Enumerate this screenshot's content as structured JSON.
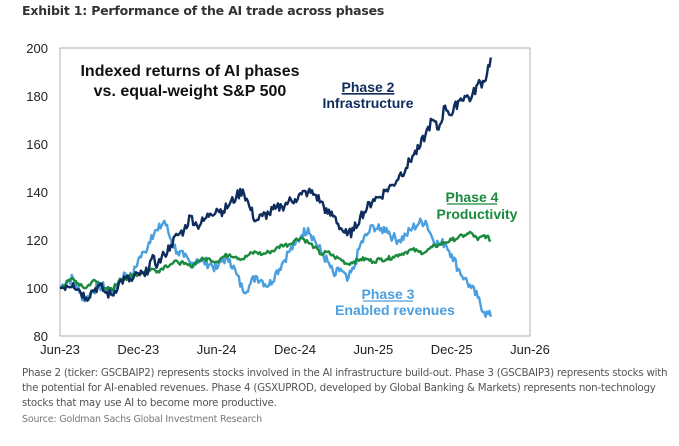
{
  "exhibit_title": "Exhibit 1: Performance of the AI trade across phases",
  "footnote": "Phase 2 (ticker: GSCBAIP2) represents stocks involved in the AI infrastructure build-out. Phase 3 (GSCBAIP3) represents stocks with the potential for AI-enabled revenues. Phase 4 (GSXUPROD, developed by Global Banking & Markets) represents non-technology stocks that may use AI to become more productive.",
  "source": "Source: Goldman Sachs Global Investment Research",
  "chart_data": {
    "type": "line",
    "title": "Indexed returns of AI phases vs. equal-weight S&P 500",
    "title_lines": [
      "Indexed returns of AI phases",
      "vs. equal-weight S&P 500"
    ],
    "xlabel": "",
    "ylabel": "",
    "x_unit": "months since Jun-23",
    "xlim": [
      0,
      36
    ],
    "ylim": [
      80,
      200
    ],
    "x_ticks": [
      {
        "label": "Jun-23",
        "value": 0
      },
      {
        "label": "Dec-23",
        "value": 6
      },
      {
        "label": "Jun-24",
        "value": 12
      },
      {
        "label": "Dec-24",
        "value": 18
      },
      {
        "label": "Jun-25",
        "value": 24
      },
      {
        "label": "Dec-25",
        "value": 30
      },
      {
        "label": "Jun-26",
        "value": 36
      }
    ],
    "y_ticks": [
      80,
      100,
      120,
      140,
      160,
      180,
      200
    ],
    "grid": false,
    "legend": "inline annotations",
    "x": [
      0,
      0.5,
      1,
      1.5,
      2,
      2.5,
      3,
      3.5,
      4,
      4.5,
      5,
      5.5,
      6,
      6.5,
      7,
      7.5,
      8,
      8.5,
      9,
      9.5,
      10,
      10.5,
      11,
      11.5,
      12,
      12.5,
      13,
      13.5,
      14,
      14.5,
      15,
      15.5,
      16,
      16.5,
      17,
      17.5,
      18,
      18.5,
      19,
      19.5,
      20,
      20.5,
      21,
      21.5,
      22,
      22.5,
      23,
      23.5,
      24,
      24.5,
      25,
      25.5,
      26,
      26.5,
      27,
      27.5,
      28,
      28.5,
      29,
      29.5,
      30,
      30.5,
      31,
      31.5,
      32,
      32.5,
      33
    ],
    "series": [
      {
        "name": "Phase 2",
        "label_line1": "Phase 2",
        "label_line2": "Infrastructure",
        "color": "#0f2d5c",
        "values": [
          100,
          101,
          102,
          99,
          96,
          99,
          101,
          98,
          97,
          102,
          104,
          103,
          106,
          105,
          112,
          110,
          114,
          118,
          122,
          124,
          130,
          126,
          128,
          131,
          133,
          132,
          135,
          138,
          141,
          134,
          128,
          130,
          131,
          133,
          134,
          136,
          137,
          139,
          140,
          139,
          136,
          131,
          130,
          125,
          122,
          124,
          130,
          133,
          137,
          138,
          141,
          143,
          147,
          150,
          155,
          158,
          164,
          170,
          166,
          176,
          172,
          178,
          180,
          179,
          185,
          186,
          196
        ]
      },
      {
        "name": "Phase 3",
        "label_line1": "Phase 3",
        "label_line2": "Enabled revenues",
        "color": "#4a9fe0",
        "values": [
          100,
          103,
          104,
          98,
          95,
          99,
          101,
          100,
          98,
          102,
          106,
          104,
          112,
          115,
          122,
          124,
          128,
          120,
          115,
          113,
          110,
          112,
          111,
          110,
          108,
          112,
          112,
          106,
          99,
          101,
          105,
          103,
          101,
          106,
          110,
          115,
          118,
          122,
          125,
          120,
          115,
          111,
          105,
          108,
          103,
          108,
          118,
          122,
          126,
          124,
          125,
          121,
          120,
          122,
          125,
          127,
          128,
          121,
          118,
          119,
          114,
          108,
          104,
          100,
          96,
          90,
          88
        ]
      },
      {
        "name": "Phase 4",
        "label_line1": "Phase 4",
        "label_line2": "Productivity",
        "color": "#1a8a3c",
        "values": [
          100,
          102,
          104,
          101,
          100,
          103,
          102,
          100,
          99,
          103,
          104,
          105,
          106,
          107,
          108,
          107,
          109,
          110,
          111,
          110,
          109,
          111,
          112,
          112,
          111,
          113,
          114,
          113,
          112,
          114,
          115,
          114,
          115,
          116,
          118,
          118,
          120,
          121,
          119,
          117,
          114,
          115,
          113,
          112,
          110,
          111,
          112,
          112,
          111,
          112,
          112,
          113,
          114,
          115,
          116,
          115,
          115,
          117,
          118,
          119,
          120,
          121,
          122,
          123,
          120,
          122,
          120
        ]
      }
    ]
  }
}
